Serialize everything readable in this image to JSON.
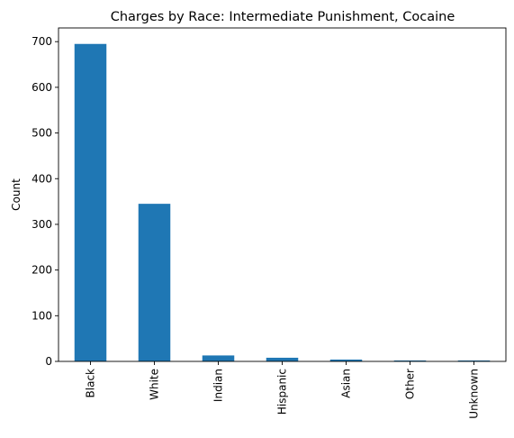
{
  "chart_data": {
    "type": "bar",
    "title": "Charges by Race: Intermediate Punishment, Cocaine",
    "xlabel": "",
    "ylabel": "Count",
    "categories": [
      "Black",
      "White",
      "Indian",
      "Hispanic",
      "Asian",
      "Other",
      "Unknown"
    ],
    "values": [
      695,
      345,
      13,
      8,
      4,
      2,
      2
    ],
    "ylim": [
      0,
      730
    ],
    "yticks": [
      0,
      100,
      200,
      300,
      400,
      500,
      600,
      700
    ],
    "grid": false,
    "legend": "none",
    "bar_color": "#1f77b4"
  }
}
